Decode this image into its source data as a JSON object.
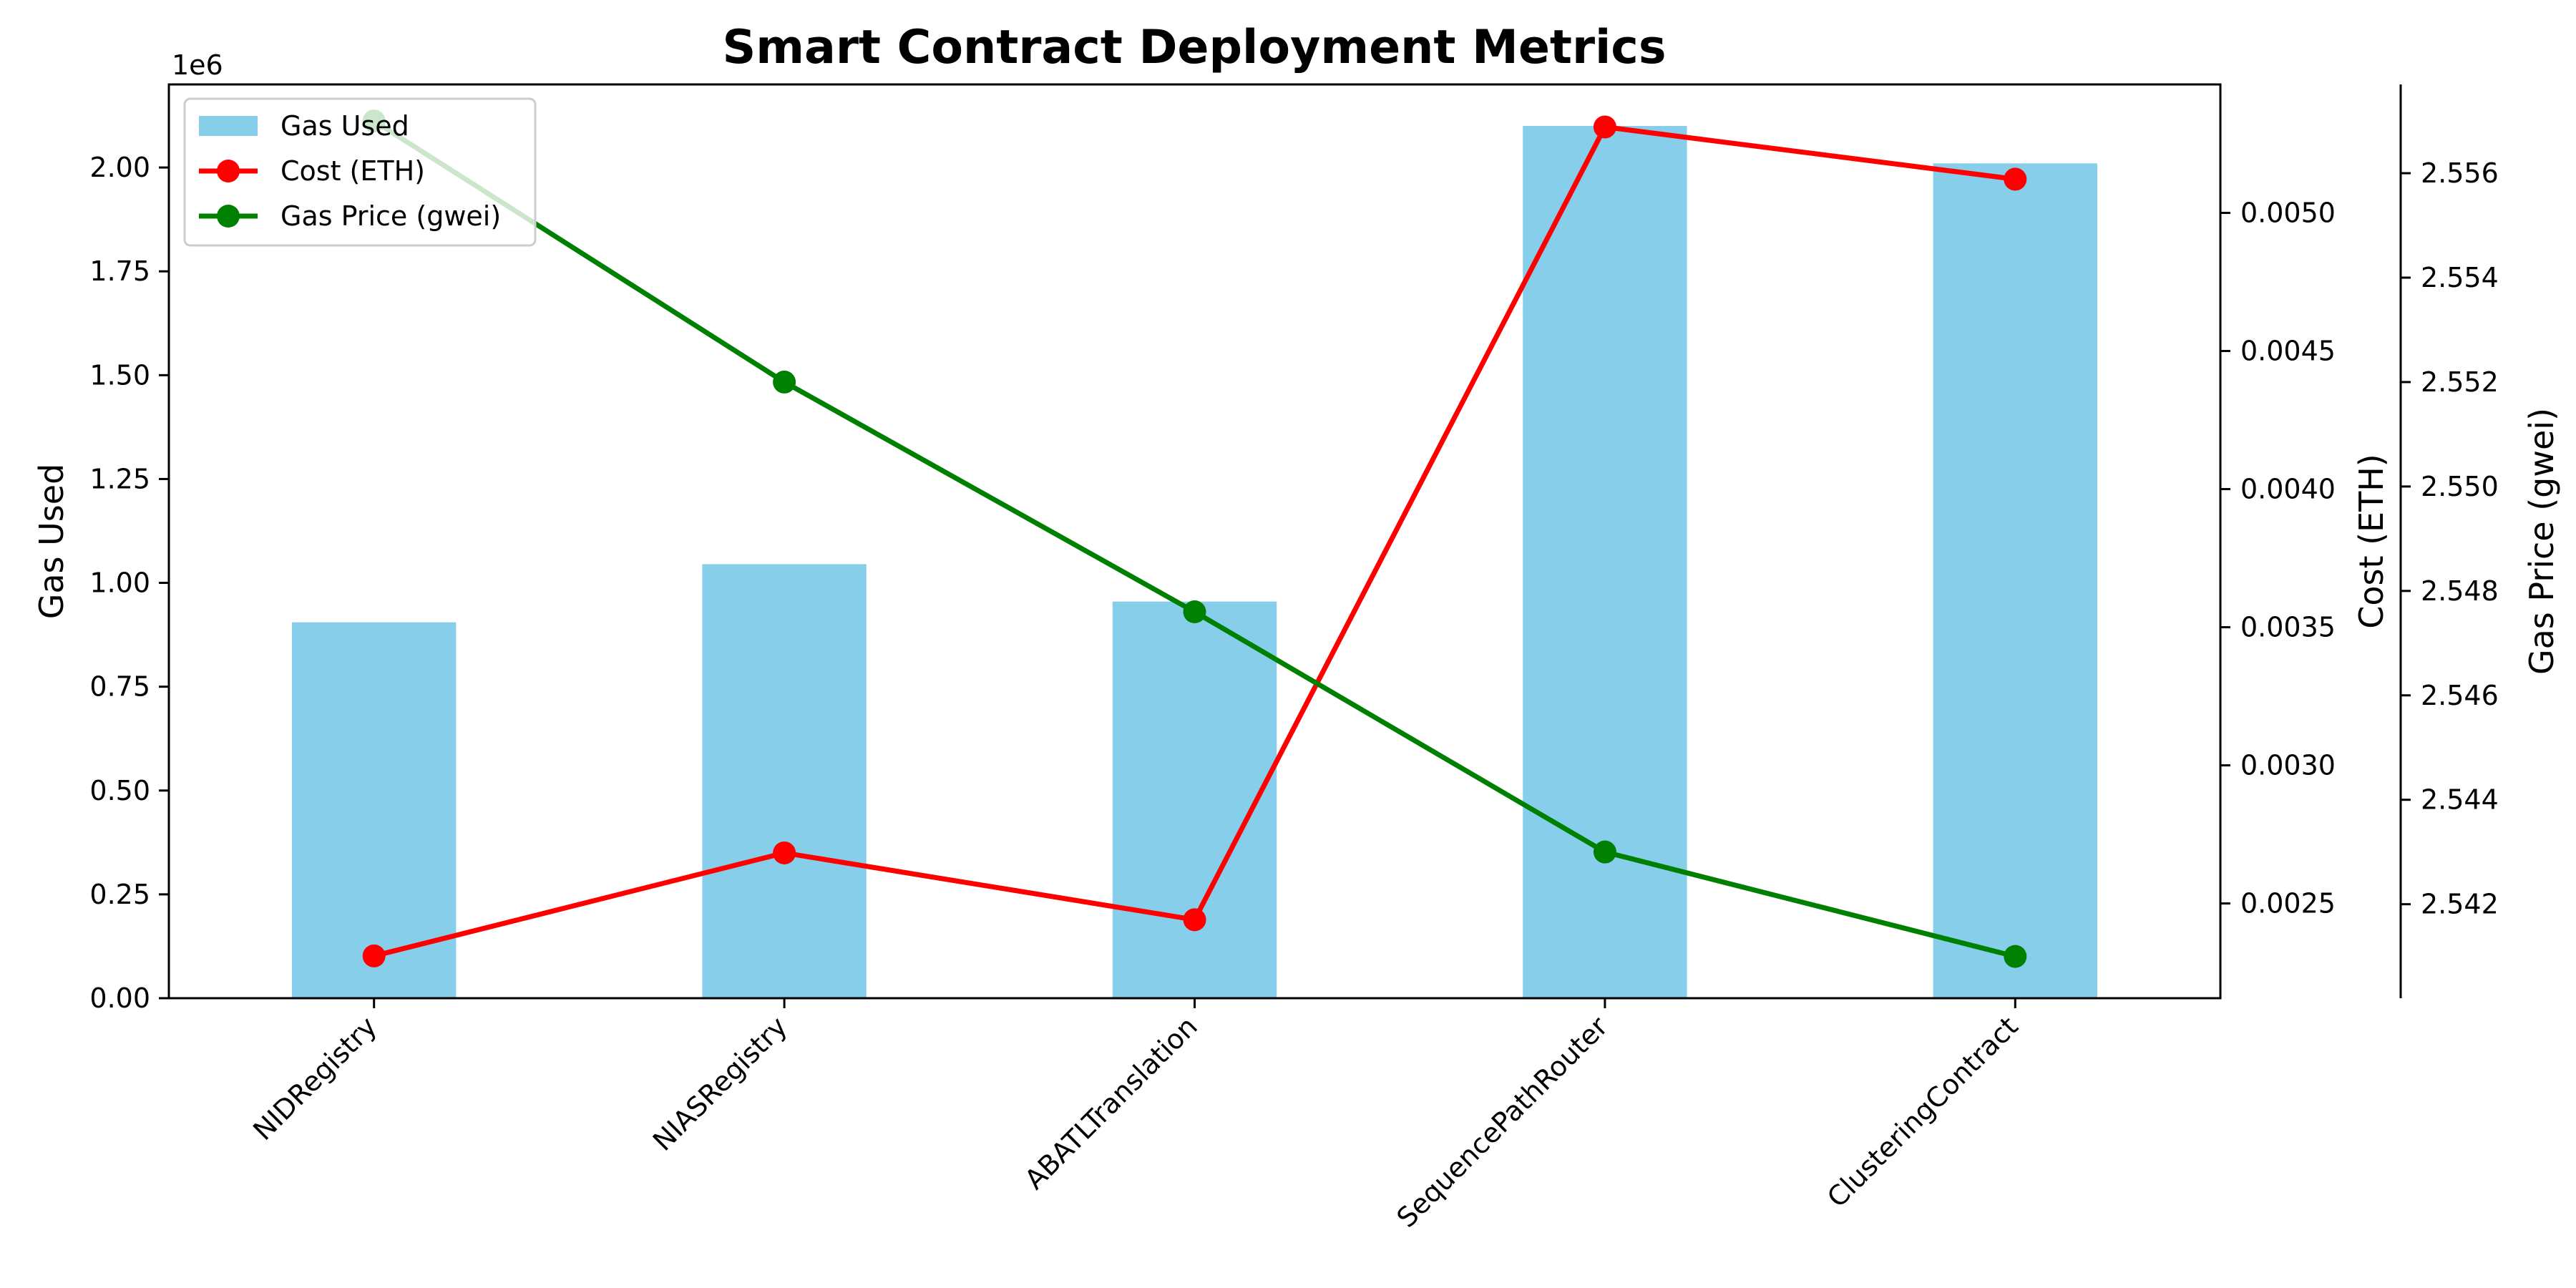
{
  "chart_data": {
    "type": "bar",
    "title": "Smart Contract Deployment Metrics",
    "categories": [
      "NIDRegistry",
      "NIASRegistry",
      "ABATLTranslation",
      "SequencePathRouter",
      "ClusteringContract"
    ],
    "series": [
      {
        "name": "Gas Used",
        "kind": "bar",
        "axis": "left",
        "color": "#87CEEB",
        "values": [
          905000,
          1045000,
          955000,
          2100000,
          2010000
        ]
      },
      {
        "name": "Cost (ETH)",
        "kind": "line",
        "axis": "right1",
        "color": "#FF0000",
        "values": [
          0.00231,
          0.002683,
          0.002441,
          0.005311,
          0.005122
        ]
      },
      {
        "name": "Gas Price (gwei)",
        "kind": "line",
        "axis": "right2",
        "color": "#008000",
        "values": [
          2.557,
          2.552,
          2.5476,
          2.543,
          2.541
        ]
      }
    ],
    "axes": {
      "left": {
        "label": "Gas Used",
        "offset_text": "1e6",
        "min": 0,
        "max": 2200000,
        "ticks": [
          0,
          250000,
          500000,
          750000,
          1000000,
          1250000,
          1500000,
          1750000,
          2000000
        ],
        "tick_labels": [
          "0.00",
          "0.25",
          "0.50",
          "0.75",
          "1.00",
          "1.25",
          "1.50",
          "1.75",
          "2.00"
        ]
      },
      "right1": {
        "label": "Cost (ETH)",
        "min": 0.002157,
        "max": 0.005465,
        "ticks": [
          0.0025,
          0.003,
          0.0035,
          0.004,
          0.0045,
          0.005
        ],
        "tick_labels": [
          "0.0025",
          "0.0030",
          "0.0035",
          "0.0040",
          "0.0045",
          "0.0050"
        ]
      },
      "right2": {
        "label": "Gas Price (gwei)",
        "min": 2.5402,
        "max": 2.5577,
        "ticks": [
          2.542,
          2.544,
          2.546,
          2.548,
          2.55,
          2.552,
          2.554,
          2.556
        ],
        "tick_labels": [
          "2.542",
          "2.544",
          "2.546",
          "2.548",
          "2.550",
          "2.552",
          "2.554",
          "2.556"
        ]
      }
    },
    "legend": {
      "position": "top-left"
    },
    "grid": false
  }
}
